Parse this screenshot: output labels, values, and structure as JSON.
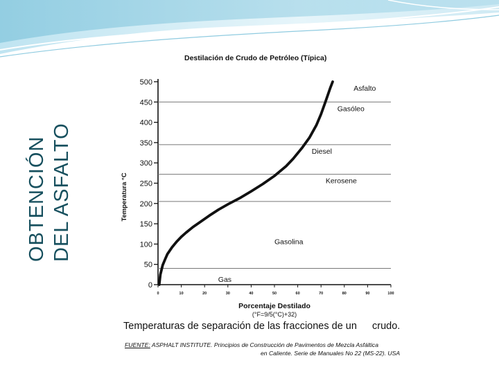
{
  "slide": {
    "title_line1": "OBTENCIÓN",
    "title_line2": "DEL ASFALTO",
    "colors": {
      "title": "#17505e",
      "banner_light": "#d8eef6",
      "banner_mid": "#9fd3e6",
      "banner_dark": "#5fb3cf"
    }
  },
  "figure": {
    "caption_part1": "Temperaturas de separación de las fracciones de un",
    "caption_part2": "crudo.",
    "source_label": "FUENTE:",
    "source_line1": "ASPHALT INSTITUTE. Principios de Construcción de Pavimentos de Mezcla Asfáltica",
    "source_line2": "en Caliente. Serie de Manuales No 22 (MS-22). USA"
  },
  "chart_data": {
    "type": "line",
    "title": "Destilación de Crudo de Petróleo (Típica)",
    "xlabel": "Porcentaje Destilado",
    "xlabel_sub": "(°F=9/5(°C)+32)",
    "ylabel": "Temperatura °C",
    "xlim": [
      0,
      100
    ],
    "ylim": [
      0,
      500
    ],
    "xticks": [
      0,
      10,
      20,
      30,
      40,
      50,
      60,
      70,
      80,
      90,
      100
    ],
    "yticks": [
      0,
      50,
      100,
      150,
      200,
      250,
      300,
      350,
      400,
      450,
      500
    ],
    "grid": false,
    "series": [
      {
        "x": [
          0.5,
          1,
          2,
          3,
          4,
          6,
          8,
          10,
          12,
          15,
          18,
          22,
          26,
          30,
          35,
          40,
          45,
          50,
          55,
          58,
          62,
          65,
          68,
          70,
          72,
          74,
          75
        ],
        "y": [
          0,
          25,
          48,
          62,
          75,
          92,
          106,
          118,
          128,
          142,
          154,
          170,
          185,
          198,
          213,
          230,
          248,
          268,
          292,
          310,
          338,
          362,
          393,
          420,
          452,
          485,
          500
        ]
      }
    ],
    "fractions": [
      {
        "label": "Gas",
        "upper": 40
      },
      {
        "label": "Gasolina",
        "upper": 205
      },
      {
        "label": "Kerosene",
        "upper": 272
      },
      {
        "label": "Diesel",
        "upper": 345
      },
      {
        "label": "Gasóleo",
        "upper": 450
      },
      {
        "label": "Asfalto",
        "upper": 500
      }
    ]
  }
}
